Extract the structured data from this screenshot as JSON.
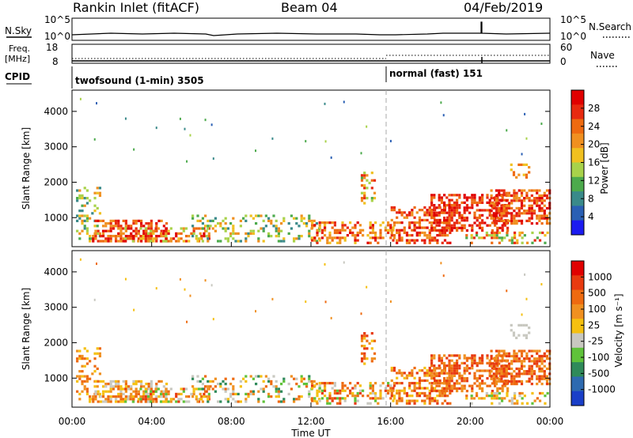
{
  "header": {
    "station": "Rankin Inlet (fitACF)",
    "beam": "Beam 04",
    "date": "04/Feb/2019"
  },
  "status_panel": {
    "nsky_label": "N.Sky",
    "nsearch_label": "N.Search",
    "nsky_ticks": [
      "10^5",
      "10^0"
    ],
    "nsearch_ticks": [
      "10^5",
      "10^0"
    ],
    "freq_label_1": "Freq.",
    "freq_label_2": "[MHz]",
    "freq_ticks": [
      "18",
      "8"
    ],
    "nave_label": "Nave",
    "nave_ticks": [
      "60",
      "0"
    ],
    "cpid_label": "CPID",
    "cpid_1": "twofsound (1-min) 3505",
    "cpid_2": "normal (fast) 151"
  },
  "chart_data": [
    {
      "type": "heatmap",
      "name": "power",
      "ylabel": "Slant Range [km]",
      "yticks": [
        "1000",
        "2000",
        "3000",
        "4000"
      ],
      "ylim": [
        180,
        4600
      ],
      "xlim": [
        0,
        24
      ],
      "colorbar": {
        "label": "Power [dB]",
        "ticks": [
          "28",
          "24",
          "20",
          "16",
          "12",
          "8",
          "4"
        ],
        "range": [
          0,
          32
        ],
        "colors": [
          "#1b1bf0",
          "#2a5fb4",
          "#3a8a8a",
          "#4caa4c",
          "#a8d24a",
          "#f0c020",
          "#f09020",
          "#ee6a10",
          "#e82a10",
          "#e00000"
        ]
      },
      "dominant_features": [
        {
          "t_start": 0.5,
          "t_end": 4.5,
          "range_km": [
            300,
            900
          ],
          "level": "high"
        },
        {
          "t_start": 14.0,
          "t_end": 24.0,
          "range_km": [
            300,
            1700
          ],
          "level": "high"
        }
      ]
    },
    {
      "type": "heatmap",
      "name": "velocity",
      "ylabel": "Slant Range [km]",
      "yticks": [
        "1000",
        "2000",
        "3000",
        "4000"
      ],
      "ylim": [
        180,
        4600
      ],
      "xlim": [
        0,
        24
      ],
      "colorbar": {
        "label": "Velocity [m s⁻¹]",
        "ticks": [
          "1000",
          "500",
          "100",
          "25",
          "-25",
          "-100",
          "-500",
          "-1000"
        ],
        "colors": [
          "#1a3fc8",
          "#2e6ab0",
          "#2f8a5a",
          "#5fc23a",
          "#c8c8c0",
          "#f5c010",
          "#f09020",
          "#ee6a10",
          "#e83a10",
          "#e00000"
        ]
      }
    }
  ],
  "xaxis": {
    "ticks": [
      "00:00",
      "04:00",
      "08:00",
      "12:00",
      "16:00",
      "20:00",
      "00:00"
    ],
    "label": "Time UT"
  }
}
